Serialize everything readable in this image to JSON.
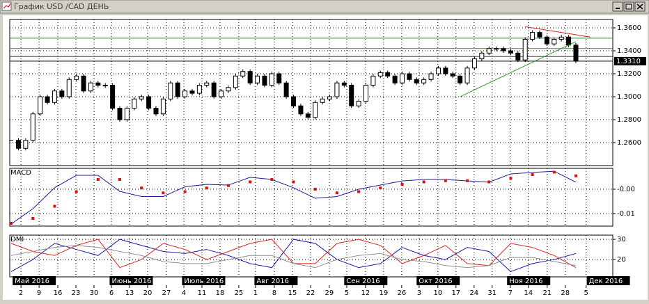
{
  "window": {
    "title": "График USD /CAD  ДЕНЬ"
  },
  "chart_data": [
    {
      "type": "candlestick",
      "close": [
        1.262,
        1.255,
        1.262,
        1.285,
        1.3,
        1.295,
        1.305,
        1.3,
        1.315,
        1.318,
        1.305,
        1.312,
        1.31,
        1.31,
        1.29,
        1.28,
        1.29,
        1.298,
        1.3,
        1.29,
        1.285,
        1.298,
        1.312,
        1.3,
        1.305,
        1.303,
        1.31,
        1.312,
        1.3,
        1.305,
        1.308,
        1.318,
        1.322,
        1.312,
        1.318,
        1.31,
        1.32,
        1.312,
        1.3,
        1.292,
        1.285,
        1.282,
        1.295,
        1.298,
        1.3,
        1.312,
        1.31,
        1.292,
        1.296,
        1.31,
        1.318,
        1.321,
        1.318,
        1.312,
        1.32,
        1.315,
        1.312,
        1.315,
        1.32,
        1.325,
        1.32,
        1.318,
        1.312,
        1.325,
        1.333,
        1.338,
        1.342,
        1.342,
        1.34,
        1.338,
        1.332,
        1.35,
        1.356,
        1.352,
        1.346,
        1.35,
        1.352,
        1.345,
        1.331
      ],
      "xlim": [
        -0.2,
        83.1
      ],
      "ylim": [
        1.24,
        1.3673
      ],
      "yticks": [
        {
          "value": 1.36,
          "label": "1.3600"
        },
        {
          "value": 1.34,
          "label": "1.3400"
        },
        {
          "value": 1.32,
          "label": "1.3200"
        },
        {
          "value": 1.3,
          "label": "1.3000"
        },
        {
          "value": 1.28,
          "label": "1.2800"
        },
        {
          "value": 1.26,
          "label": "1.2600"
        }
      ],
      "levels": [
        {
          "value": 1.351,
          "color": "#2e8b2e"
        },
        {
          "value": 1.342,
          "color": "#2e8b2e"
        },
        {
          "value": 1.335,
          "color": "#444444"
        }
      ],
      "last_price": {
        "value": 1.331,
        "label": "1.3310"
      },
      "trendlines": [
        {
          "color": "#2e9b2e",
          "x": [
            62,
            78
          ],
          "y": [
            1.3,
            1.348
          ]
        },
        {
          "color": "#cc2222",
          "x": [
            71,
            80
          ],
          "y": [
            1.361,
            1.352
          ]
        }
      ],
      "grid": true
    },
    {
      "type": "line",
      "title": "MACD",
      "xlim": [
        -0.2,
        83.1
      ],
      "ylim": [
        -0.01514,
        0.00857
      ],
      "yticks": [
        {
          "value": 0,
          "label": "-0.00"
        },
        -0.01
      ],
      "x": [
        0,
        3,
        6,
        9,
        12,
        15,
        18,
        21,
        24,
        27,
        30,
        33,
        36,
        39,
        42,
        45,
        48,
        51,
        54,
        57,
        60,
        63,
        66,
        69,
        72,
        75,
        78
      ],
      "series": [
        {
          "color": "#1a1a9c",
          "style": "line",
          "values": [
            -0.0143,
            -0.008,
            0.0006,
            0.0057,
            0.0057,
            -0.0009,
            -0.003,
            -0.003,
            0.001,
            0.002,
            0.0017,
            0.0049,
            0.004,
            0.0006,
            -0.0037,
            -0.003,
            0,
            0.0017,
            0.0034,
            0.004,
            0.004,
            0.0034,
            0.0029,
            0.0063,
            0.0069,
            0.0074,
            0.0029
          ]
        },
        {
          "color": "#dd1111",
          "style": "dots",
          "values": [
            -0.014,
            -0.012,
            -0.007,
            -0.001,
            0.004,
            0.004,
            0.0005,
            -0.0015,
            -0.001,
            0.0005,
            0.0015,
            0.003,
            0.004,
            0.003,
            0,
            -0.0015,
            -0.001,
            0.0005,
            0.002,
            0.003,
            0.0035,
            0.0035,
            0.003,
            0.0045,
            0.006,
            0.007,
            0.0055
          ]
        }
      ],
      "grid": true
    },
    {
      "type": "line",
      "title": "DMI",
      "xlim": [
        -0.2,
        83.1
      ],
      "ylim": [
        11.4,
        32.1
      ],
      "yticks": [
        30,
        20
      ],
      "x": [
        0,
        3,
        6,
        9,
        12,
        15,
        18,
        21,
        24,
        27,
        30,
        33,
        36,
        39,
        42,
        45,
        48,
        51,
        54,
        57,
        60,
        63,
        66,
        69,
        72,
        75,
        78
      ],
      "series": [
        {
          "color": "#1a1aa8",
          "style": "line",
          "values": [
            14,
            20,
            28,
            25,
            22,
            30,
            27,
            24,
            23,
            25,
            22,
            18,
            16,
            30,
            28,
            20,
            16,
            18,
            26,
            22,
            20,
            26,
            24,
            14,
            18,
            20,
            23
          ]
        },
        {
          "color": "#dd2222",
          "style": "line",
          "values": [
            28,
            24,
            22,
            27,
            30,
            16,
            20,
            28,
            25,
            20,
            24,
            28,
            30,
            18,
            18,
            28,
            30,
            27,
            18,
            22,
            27,
            18,
            17,
            28,
            26,
            22,
            16
          ]
        },
        {
          "color": "#909090",
          "style": "line",
          "values": [
            22,
            24,
            26,
            27,
            26,
            24,
            22,
            19,
            18,
            18,
            20,
            22,
            22,
            18,
            16,
            20,
            22,
            23,
            20,
            19,
            17,
            16,
            17,
            21,
            21,
            19,
            17
          ]
        }
      ],
      "xticks": [
        {
          "value": 1.35,
          "label": "2"
        },
        {
          "value": 3.85,
          "label": "9"
        },
        {
          "value": 6.44,
          "label": "16"
        },
        {
          "value": 8.94,
          "label": "23"
        },
        {
          "value": 11.44,
          "label": "30"
        },
        {
          "value": 13.85,
          "label": "6"
        },
        {
          "value": 16.35,
          "label": "13"
        },
        {
          "value": 18.85,
          "label": "20"
        },
        {
          "value": 21.44,
          "label": "27"
        },
        {
          "value": 23.85,
          "label": "4"
        },
        {
          "value": 26.35,
          "label": "11"
        },
        {
          "value": 28.85,
          "label": "18"
        },
        {
          "value": 31.44,
          "label": "25"
        },
        {
          "value": 33.75,
          "label": "1"
        },
        {
          "value": 36.35,
          "label": "8"
        },
        {
          "value": 38.85,
          "label": "15"
        },
        {
          "value": 41.35,
          "label": "22"
        },
        {
          "value": 43.94,
          "label": "29"
        },
        {
          "value": 46.35,
          "label": "5"
        },
        {
          "value": 48.94,
          "label": "12"
        },
        {
          "value": 51.44,
          "label": "19"
        },
        {
          "value": 53.94,
          "label": "26"
        },
        {
          "value": 56.35,
          "label": "3"
        },
        {
          "value": 58.94,
          "label": "10"
        },
        {
          "value": 61.44,
          "label": "17"
        },
        {
          "value": 63.94,
          "label": "24"
        },
        {
          "value": 66.44,
          "label": "31"
        },
        {
          "value": 68.94,
          "label": "7"
        },
        {
          "value": 71.44,
          "label": "14"
        },
        {
          "value": 74.04,
          "label": "21"
        },
        {
          "value": 76.54,
          "label": "28"
        },
        {
          "value": 79.42,
          "label": "5"
        }
      ],
      "months": [
        {
          "value": 0.2,
          "label": "Май 2016"
        },
        {
          "value": 13.6,
          "label": "Июнь 2016"
        },
        {
          "value": 23.6,
          "label": "Июль 2016"
        },
        {
          "value": 33.6,
          "label": "Авг 2016"
        },
        {
          "value": 46,
          "label": "Сен 2016"
        },
        {
          "value": 56,
          "label": "Окт 2016"
        },
        {
          "value": 68.5,
          "label": "Ноя 2016"
        },
        {
          "value": 79.5,
          "label": "Дек 2016"
        }
      ],
      "grid": true
    }
  ]
}
